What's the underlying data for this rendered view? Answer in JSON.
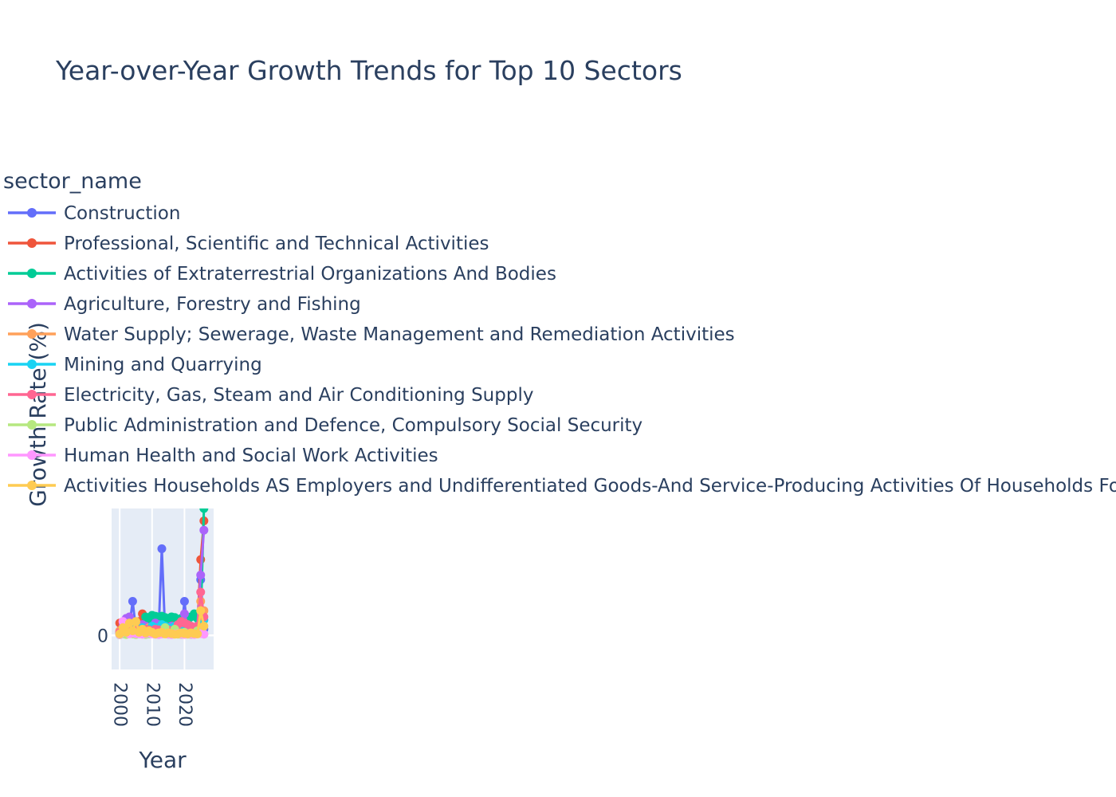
{
  "chart_data": {
    "type": "line",
    "title": "Year-over-Year Growth Trends for Top 10 Sectors",
    "xlabel": "Year",
    "ylabel": "Growth Rate (%)",
    "legend_title": "sector_name",
    "legend_position": "top-left",
    "grid": true,
    "xlim": [
      1997.5,
      2029
    ],
    "ylim": [
      -110,
      410
    ],
    "x_ticks": [
      "2000",
      "2010",
      "2020"
    ],
    "y_ticks": [
      "0"
    ],
    "x": [
      2000,
      2001,
      2002,
      2003,
      2004,
      2005,
      2006,
      2007,
      2008,
      2009,
      2010,
      2011,
      2012,
      2013,
      2014,
      2015,
      2016,
      2017,
      2018,
      2019,
      2020,
      2021,
      2022,
      2023,
      2024,
      2025,
      2026
    ],
    "series": [
      {
        "name": "Construction",
        "color": "#636efa",
        "values": [
          5,
          12,
          18,
          30,
          110,
          20,
          10,
          8,
          15,
          12,
          25,
          10,
          8,
          280,
          15,
          12,
          10,
          8,
          20,
          15,
          110,
          12,
          10,
          8,
          15,
          180,
          20
        ]
      },
      {
        "name": "Professional, Scientific and Technical Activities",
        "color": "#ef553b",
        "values": [
          40,
          20,
          15,
          30,
          25,
          20,
          45,
          70,
          35,
          25,
          20,
          30,
          25,
          20,
          30,
          25,
          40,
          35,
          25,
          30,
          40,
          30,
          25,
          20,
          30,
          245,
          370
        ]
      },
      {
        "name": "Activities of Extraterrestrial Organizations And Bodies",
        "color": "#00cc96",
        "values": [
          10,
          15,
          20,
          18,
          25,
          22,
          30,
          28,
          60,
          55,
          65,
          62,
          60,
          62,
          58,
          55,
          60,
          58,
          50,
          55,
          48,
          50,
          60,
          70,
          55,
          50,
          410
        ]
      },
      {
        "name": "Agriculture, Forestry and Fishing",
        "color": "#ab63fa",
        "values": [
          8,
          30,
          55,
          60,
          40,
          25,
          20,
          35,
          30,
          25,
          20,
          40,
          35,
          30,
          25,
          20,
          30,
          25,
          20,
          35,
          70,
          30,
          25,
          20,
          30,
          195,
          340
        ]
      },
      {
        "name": "Water Supply; Sewerage, Waste Management and Remediation Activities",
        "color": "#ffa15a",
        "values": [
          15,
          20,
          25,
          30,
          20,
          15,
          25,
          20,
          15,
          25,
          20,
          15,
          20,
          25,
          20,
          15,
          20,
          25,
          20,
          15,
          20,
          25,
          30,
          20,
          25,
          110,
          80
        ]
      },
      {
        "name": "Mining and Quarrying",
        "color": "#19d3f3",
        "values": [
          5,
          10,
          15,
          20,
          25,
          20,
          15,
          25,
          20,
          15,
          30,
          25,
          20,
          35,
          30,
          25,
          20,
          30,
          25,
          20,
          30,
          25,
          20,
          25,
          30,
          40,
          50
        ]
      },
      {
        "name": "Electricity, Gas, Steam and Air Conditioning Supply",
        "color": "#ff6692",
        "values": [
          10,
          15,
          12,
          18,
          15,
          20,
          18,
          15,
          20,
          18,
          15,
          20,
          18,
          15,
          20,
          18,
          15,
          20,
          35,
          45,
          40,
          35,
          30,
          25,
          30,
          140,
          60
        ]
      },
      {
        "name": "Public Administration and Defence, Compulsory Social Security",
        "color": "#b6e880",
        "values": [
          2,
          5,
          3,
          8,
          5,
          3,
          6,
          4,
          3,
          5,
          8,
          4,
          3,
          5,
          25,
          4,
          3,
          20,
          4,
          3,
          10,
          4,
          3,
          5,
          15,
          6,
          4
        ]
      },
      {
        "name": "Human Health and Social Work Activities",
        "color": "#ff97ff",
        "values": [
          3,
          45,
          10,
          5,
          8,
          6,
          5,
          4,
          6,
          8,
          5,
          4,
          3,
          5,
          6,
          4,
          3,
          5,
          6,
          4,
          3,
          5,
          4,
          3,
          5,
          6,
          4
        ]
      },
      {
        "name": "Activities Households AS Employers and Undifferentiated Goods-And Service-Producing Activities Of Households For Own Use",
        "color": "#fecb52",
        "values": [
          5,
          25,
          10,
          40,
          15,
          45,
          10,
          20,
          8,
          15,
          10,
          5,
          8,
          10,
          5,
          8,
          6,
          4,
          5,
          8,
          6,
          5,
          8,
          6,
          5,
          80,
          30
        ]
      }
    ]
  }
}
